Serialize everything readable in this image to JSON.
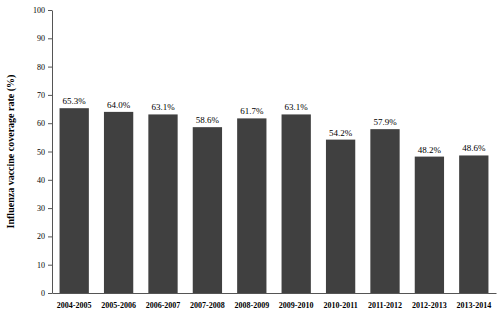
{
  "chart_data": {
    "type": "bar",
    "ylabel": "Influenza vaccine coverage rate (%)",
    "categories": [
      "2004-2005",
      "2005-2006",
      "2006-2007",
      "2007-2008",
      "2008-2009",
      "2009-2010",
      "2010-2011",
      "2011-2012",
      "2012-2013",
      "2013-2014"
    ],
    "values": [
      65.3,
      64.0,
      63.1,
      58.6,
      61.7,
      63.1,
      54.2,
      57.9,
      48.2,
      48.6
    ],
    "value_labels": [
      "65.3%",
      "64.0%",
      "63.1%",
      "58.6%",
      "61.7%",
      "63.1%",
      "54.2%",
      "57.9%",
      "48.2%",
      "48.6%"
    ],
    "color": "#404040",
    "ylim": [
      0,
      100
    ],
    "yticks": [
      0,
      10,
      20,
      30,
      40,
      50,
      60,
      70,
      80,
      90,
      100
    ],
    "data_labels": true,
    "grid": false
  }
}
